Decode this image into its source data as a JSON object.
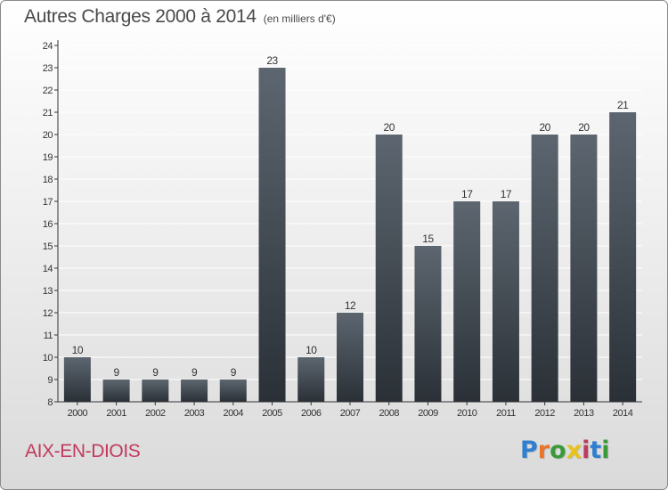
{
  "header": {
    "title": "Autres Charges 2000 à 2014",
    "subtitle": "(en milliers d'€)"
  },
  "footer": {
    "commune": "AIX-EN-DIOIS",
    "brand": "Proxiti",
    "brand_colors": [
      "#2f7fd0",
      "#e8762a",
      "#3a9a3a",
      "#e8c21a",
      "#c23a5e",
      "#2f7fd0",
      "#3a9a3a"
    ]
  },
  "colors": {
    "bar_top": "#5d6670",
    "bar_bottom": "#2a3036",
    "axis": "#333333",
    "grid": "#ffffff",
    "text": "#333333",
    "commune": "#c23a5e"
  },
  "chart_data": {
    "type": "bar",
    "categories": [
      "2000",
      "2001",
      "2002",
      "2003",
      "2004",
      "2005",
      "2006",
      "2007",
      "2008",
      "2009",
      "2010",
      "2011",
      "2012",
      "2013",
      "2014"
    ],
    "values": [
      10,
      9,
      9,
      9,
      9,
      23,
      10,
      12,
      20,
      15,
      17,
      17,
      20,
      20,
      21
    ],
    "title": "Autres Charges 2000 à 2014",
    "subtitle": "(en milliers d'€)",
    "xlabel": "",
    "ylabel": "",
    "ylim": [
      8,
      24
    ],
    "yticks": [
      8,
      9,
      10,
      11,
      12,
      13,
      14,
      15,
      16,
      17,
      18,
      19,
      20,
      21,
      22,
      23,
      24
    ],
    "grid": true,
    "data_labels": true
  }
}
